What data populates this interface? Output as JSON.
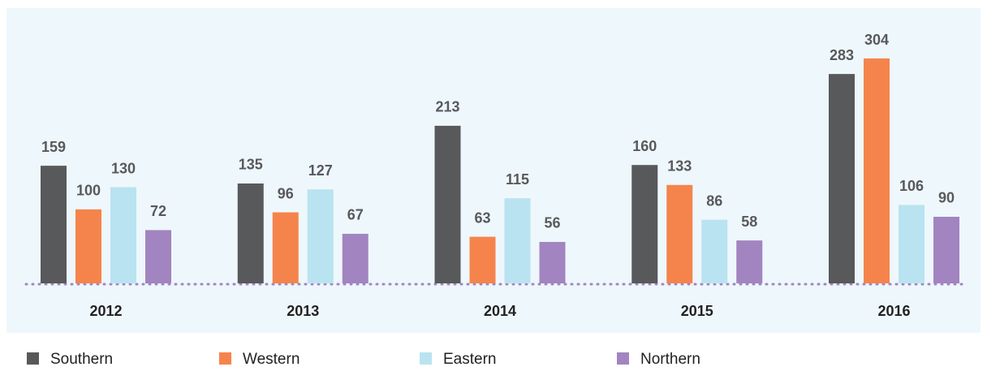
{
  "chart_data": {
    "type": "bar",
    "categories": [
      "2012",
      "2013",
      "2014",
      "2015",
      "2016"
    ],
    "series": [
      {
        "name": "Southern",
        "color": "#58595b",
        "values": [
          159,
          135,
          213,
          160,
          283
        ]
      },
      {
        "name": "Western",
        "color": "#f5844c",
        "values": [
          100,
          96,
          63,
          133,
          304
        ]
      },
      {
        "name": "Eastern",
        "color": "#b9e3f0",
        "values": [
          130,
          127,
          115,
          86,
          106
        ]
      },
      {
        "name": "Northern",
        "color": "#a284c0",
        "values": [
          72,
          67,
          56,
          58,
          90
        ]
      }
    ]
  }
}
